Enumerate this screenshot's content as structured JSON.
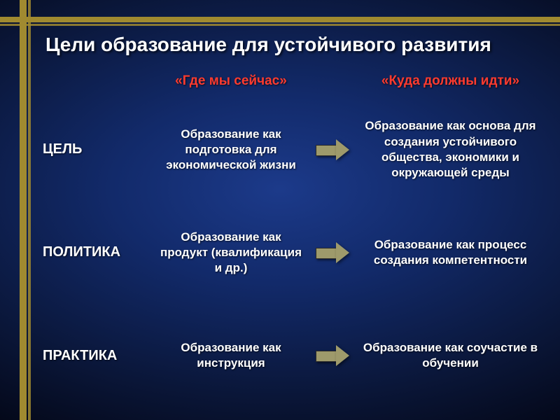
{
  "colors": {
    "background_center": "#1c3a8a",
    "background_edge": "#000000",
    "decor_bar": "#a08a30",
    "title_color": "#ffffff",
    "header_now": "#ff3b2f",
    "header_future": "#ff3b2f",
    "text_color": "#ffffff",
    "arrow_fill": "#9e9a6b"
  },
  "layout": {
    "type": "table",
    "columns": [
      "label",
      "now",
      "arrow",
      "future"
    ],
    "rows": 3,
    "slide_width": 800,
    "slide_height": 600,
    "title_fontsize": 28,
    "header_fontsize": 19,
    "rowlabel_fontsize": 20,
    "cell_fontsize": 17
  },
  "title": "Цели образование для устойчивого развития",
  "headers": {
    "now": "«Где мы сейчас»",
    "future": "«Куда должны идти»"
  },
  "rows": [
    {
      "label": "ЦЕЛЬ",
      "now": "Образование как подготовка для экономической жизни",
      "future": "Образование как основа для создания устойчивого общества, экономики и окружающей среды"
    },
    {
      "label": "ПОЛИТИКА",
      "now": "Образование как продукт (квалификация и др.)",
      "future": "Образование как процесс создания компетентности"
    },
    {
      "label": "ПРАКТИКА",
      "now": "Образование как инструкция",
      "future": "Образование как соучастие в обучении"
    }
  ]
}
